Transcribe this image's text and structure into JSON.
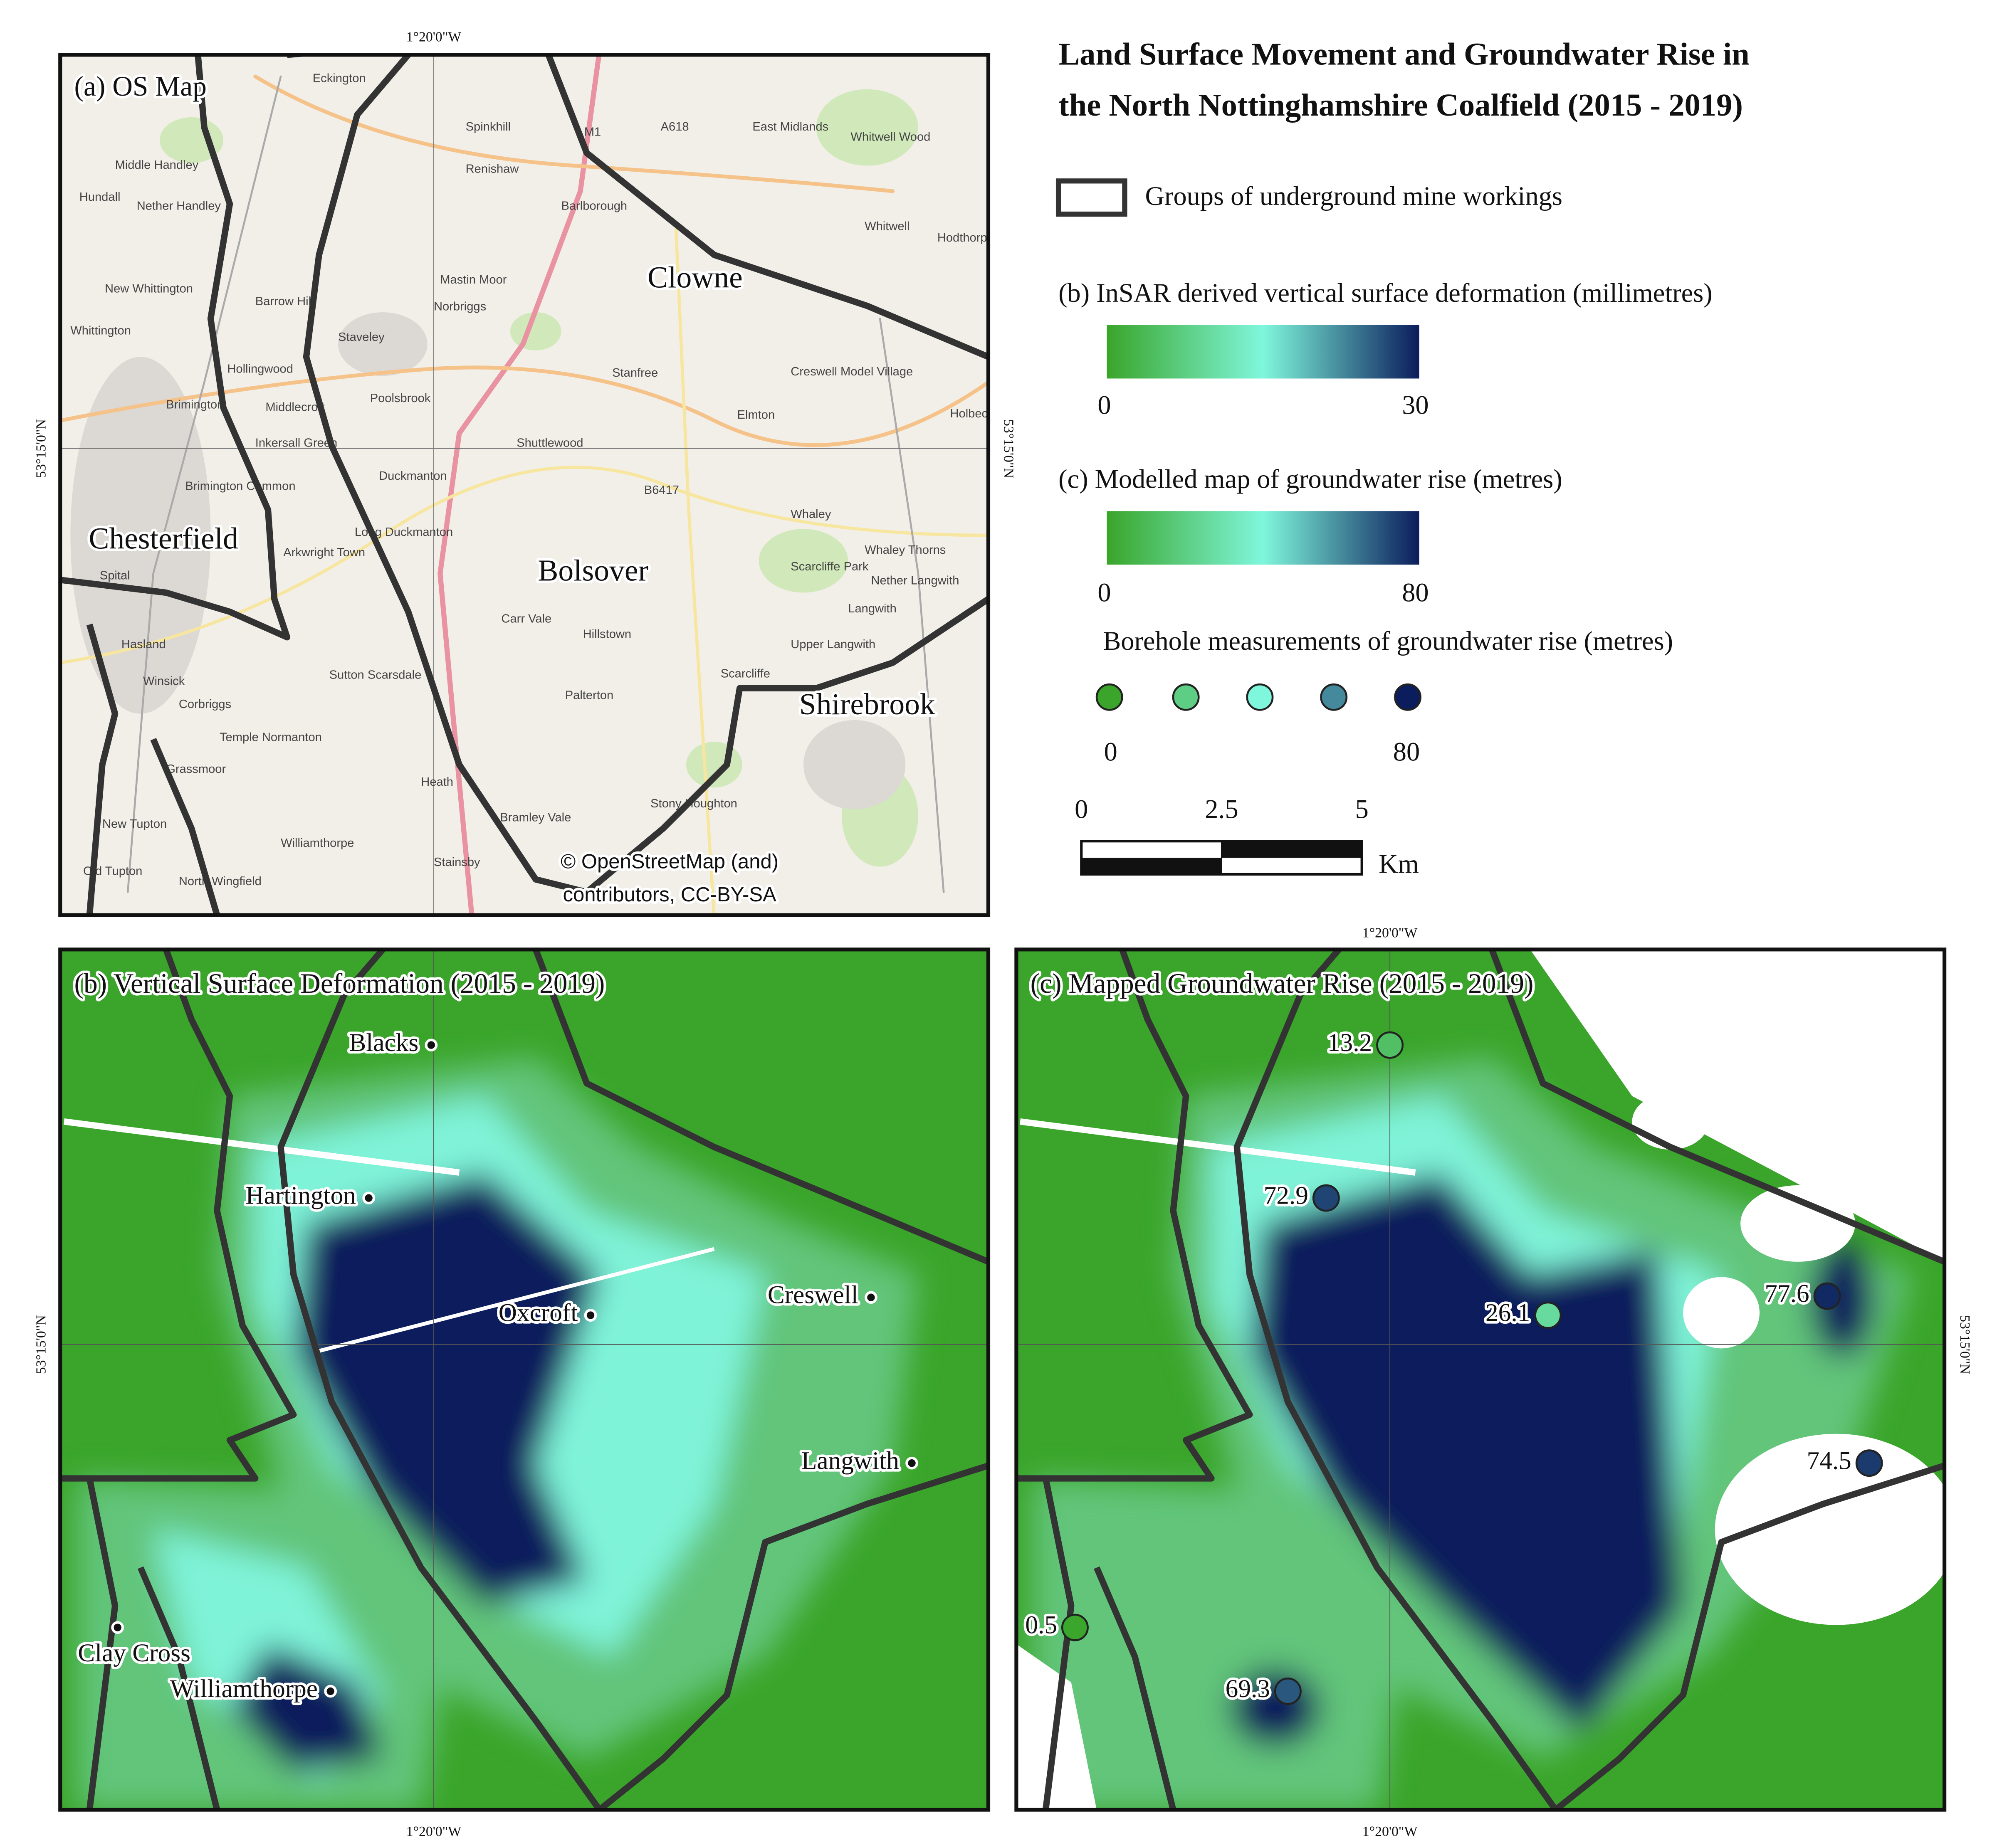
{
  "title": [
    "Land Surface Movement and Groundwater Rise in",
    "the North Nottinghamshire Coalfield (2015 - 2019)"
  ],
  "legend": {
    "mine_workings": "Groups of underground mine workings",
    "deformation": {
      "title": "(b) InSAR derived vertical surface deformation (millimetres)",
      "min": 0,
      "max": 30
    },
    "groundwater": {
      "title": "(c) Modelled map of groundwater rise (metres)",
      "min": 0,
      "max": 80
    },
    "boreholes": {
      "title": "Borehole measurements of groundwater rise (metres)",
      "min": 0,
      "max": 80
    },
    "colormap": [
      "#3aa52a",
      "#7ff7dc",
      "#0b1d5c"
    ]
  },
  "scale_bar": {
    "ticks": [
      0,
      2.5,
      5
    ],
    "unit": "Km"
  },
  "coordinates": {
    "longitude": "1°20'0\"W",
    "latitude": "53°15'0\"N"
  },
  "panels": [
    {
      "label": "(a) OS Map",
      "towns": [
        "Clowne",
        "Chesterfield",
        "Bolsover",
        "Shirebrook"
      ],
      "villages": [
        "Eckington",
        "Spinkhill",
        "Renishaw",
        "Barlborough",
        "Middle Handley",
        "Nether Handley",
        "Hundall",
        "Mastin Moor",
        "Norbriggs",
        "New Whittington",
        "Barrow Hill",
        "Staveley",
        "Whittington",
        "Hollingwood",
        "Brimington",
        "Middlecroft",
        "Poolsbrook",
        "Stanfree",
        "Creswell Model Village",
        "Elmton",
        "Shuttlewood",
        "Inkersall Green",
        "Duckmanton",
        "Brimington Common",
        "Long Duckmanton",
        "Arkwright Town",
        "Spital",
        "Whaley",
        "Whaley Thorns",
        "Scarcliffe Park",
        "Nether Langwith",
        "Langwith",
        "Carr Vale",
        "Hillstown",
        "Upper Langwith",
        "Hasland",
        "Winsick",
        "Corbriggs",
        "Sutton Scarsdale",
        "Scarcliffe",
        "Palterton",
        "Temple Normanton",
        "Grassmoor",
        "Heath",
        "Stony Houghton",
        "New Tupton",
        "Bramley Vale",
        "Williamthorpe",
        "Stainsby",
        "Old Tupton",
        "North Wingfield",
        "Whitwell",
        "Whitwell Wood",
        "Hodthorpe",
        "Holbeck",
        "A618",
        "M1",
        "B6417",
        "East Midlands"
      ],
      "attribution": [
        "© OpenStreetMap (and)",
        "contributors, CC-BY-SA"
      ]
    },
    {
      "label": "(b) Vertical Surface Deformation (2015 - 2019)",
      "places": [
        "Blacks",
        "Hartington",
        "Oxcroft",
        "Creswell",
        "Langwith",
        "Clay Cross",
        "Williamthorpe"
      ]
    },
    {
      "label": "(c) Mapped Groundwater Rise (2015 - 2019)",
      "boreholes": [
        13.2,
        72.9,
        26.1,
        77.6,
        74.5,
        0.5,
        69.3
      ]
    }
  ]
}
